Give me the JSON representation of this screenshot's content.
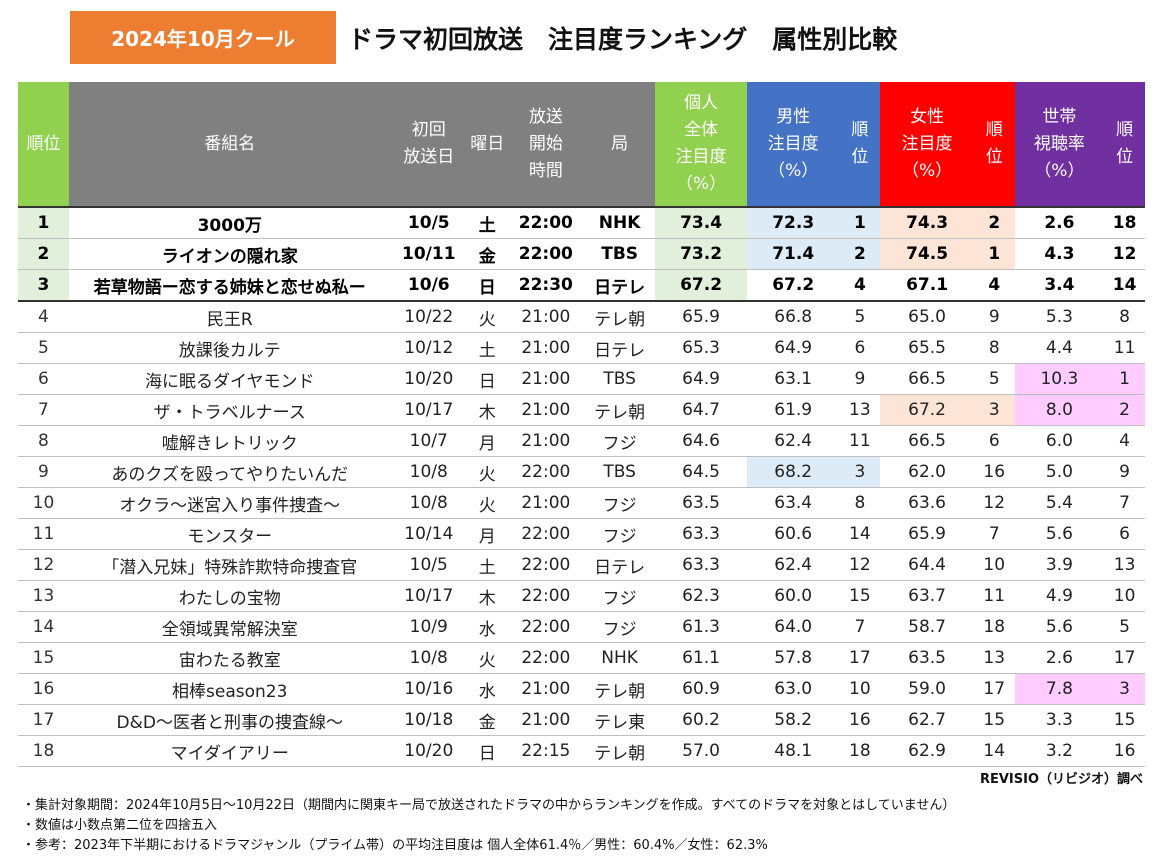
{
  "header": {
    "badge": "2024年10月クール",
    "title": "ドラマ初回放送　注目度ランキング　属性別比較"
  },
  "table": {
    "columns": {
      "rank": "順位",
      "name": "番組名",
      "date": "初回\n放送日",
      "day": "曜日",
      "time": "放送\n開始\n時間",
      "station": "局",
      "individual": "個人\n全体\n注目度\n（%）",
      "male": "男性\n注目度\n（%）",
      "male_rank": "順\n位",
      "female": "女性\n注目度\n（%）",
      "female_rank": "順\n位",
      "household": "世帯\n視聴率\n（%）",
      "household_rank": "順\n位"
    },
    "rows": [
      {
        "rank": "1",
        "name": "3000万",
        "date": "10/5",
        "day": "土",
        "time": "22:00",
        "station": "NHK",
        "individual": "73.4",
        "male": "72.3",
        "male_rank": "1",
        "female": "74.3",
        "female_rank": "2",
        "household": "2.6",
        "household_rank": "18"
      },
      {
        "rank": "2",
        "name": "ライオンの隠れ家",
        "date": "10/11",
        "day": "金",
        "time": "22:00",
        "station": "TBS",
        "individual": "73.2",
        "male": "71.4",
        "male_rank": "2",
        "female": "74.5",
        "female_rank": "1",
        "household": "4.3",
        "household_rank": "12"
      },
      {
        "rank": "3",
        "name": "若草物語ー恋する姉妹と恋せぬ私ー",
        "date": "10/6",
        "day": "日",
        "time": "22:30",
        "station": "日テレ",
        "individual": "67.2",
        "male": "67.2",
        "male_rank": "4",
        "female": "67.1",
        "female_rank": "4",
        "household": "3.4",
        "household_rank": "14"
      },
      {
        "rank": "4",
        "name": "民王R",
        "date": "10/22",
        "day": "火",
        "time": "21:00",
        "station": "テレ朝",
        "individual": "65.9",
        "male": "66.8",
        "male_rank": "5",
        "female": "65.0",
        "female_rank": "9",
        "household": "5.3",
        "household_rank": "8"
      },
      {
        "rank": "5",
        "name": "放課後カルテ",
        "date": "10/12",
        "day": "土",
        "time": "21:00",
        "station": "日テレ",
        "individual": "65.3",
        "male": "64.9",
        "male_rank": "6",
        "female": "65.5",
        "female_rank": "8",
        "household": "4.4",
        "household_rank": "11"
      },
      {
        "rank": "6",
        "name": "海に眠るダイヤモンド",
        "date": "10/20",
        "day": "日",
        "time": "21:00",
        "station": "TBS",
        "individual": "64.9",
        "male": "63.1",
        "male_rank": "9",
        "female": "66.5",
        "female_rank": "5",
        "household": "10.3",
        "household_rank": "1"
      },
      {
        "rank": "7",
        "name": "ザ・トラベルナース",
        "date": "10/17",
        "day": "木",
        "time": "21:00",
        "station": "テレ朝",
        "individual": "64.7",
        "male": "61.9",
        "male_rank": "13",
        "female": "67.2",
        "female_rank": "3",
        "household": "8.0",
        "household_rank": "2"
      },
      {
        "rank": "8",
        "name": "嘘解きレトリック",
        "date": "10/7",
        "day": "月",
        "time": "21:00",
        "station": "フジ",
        "individual": "64.6",
        "male": "62.4",
        "male_rank": "11",
        "female": "66.5",
        "female_rank": "6",
        "household": "6.0",
        "household_rank": "4"
      },
      {
        "rank": "9",
        "name": "あのクズを殴ってやりたいんだ",
        "date": "10/8",
        "day": "火",
        "time": "22:00",
        "station": "TBS",
        "individual": "64.5",
        "male": "68.2",
        "male_rank": "3",
        "female": "62.0",
        "female_rank": "16",
        "household": "5.0",
        "household_rank": "9"
      },
      {
        "rank": "10",
        "name": "オクラ～迷宮入り事件捜査～",
        "date": "10/8",
        "day": "火",
        "time": "21:00",
        "station": "フジ",
        "individual": "63.5",
        "male": "63.4",
        "male_rank": "8",
        "female": "63.6",
        "female_rank": "12",
        "household": "5.4",
        "household_rank": "7"
      },
      {
        "rank": "11",
        "name": "モンスター",
        "date": "10/14",
        "day": "月",
        "time": "22:00",
        "station": "フジ",
        "individual": "63.3",
        "male": "60.6",
        "male_rank": "14",
        "female": "65.9",
        "female_rank": "7",
        "household": "5.6",
        "household_rank": "6"
      },
      {
        "rank": "12",
        "name": "「潜入兄妹」特殊詐欺特命捜査官",
        "date": "10/5",
        "day": "土",
        "time": "22:00",
        "station": "日テレ",
        "individual": "63.3",
        "male": "62.4",
        "male_rank": "12",
        "female": "64.4",
        "female_rank": "10",
        "household": "3.9",
        "household_rank": "13"
      },
      {
        "rank": "13",
        "name": "わたしの宝物",
        "date": "10/17",
        "day": "木",
        "time": "22:00",
        "station": "フジ",
        "individual": "62.3",
        "male": "60.0",
        "male_rank": "15",
        "female": "63.7",
        "female_rank": "11",
        "household": "4.9",
        "household_rank": "10"
      },
      {
        "rank": "14",
        "name": "全領域異常解決室",
        "date": "10/9",
        "day": "水",
        "time": "22:00",
        "station": "フジ",
        "individual": "61.3",
        "male": "64.0",
        "male_rank": "7",
        "female": "58.7",
        "female_rank": "18",
        "household": "5.6",
        "household_rank": "5"
      },
      {
        "rank": "15",
        "name": "宙わたる教室",
        "date": "10/8",
        "day": "火",
        "time": "22:00",
        "station": "NHK",
        "individual": "61.1",
        "male": "57.8",
        "male_rank": "17",
        "female": "63.5",
        "female_rank": "13",
        "household": "2.6",
        "household_rank": "17"
      },
      {
        "rank": "16",
        "name": "相棒season23",
        "date": "10/16",
        "day": "水",
        "time": "21:00",
        "station": "テレ朝",
        "individual": "60.9",
        "male": "63.0",
        "male_rank": "10",
        "female": "59.0",
        "female_rank": "17",
        "household": "7.8",
        "household_rank": "3"
      },
      {
        "rank": "17",
        "name": "D&D～医者と刑事の捜査線～",
        "date": "10/18",
        "day": "金",
        "time": "21:00",
        "station": "テレ東",
        "individual": "60.2",
        "male": "58.2",
        "male_rank": "16",
        "female": "62.7",
        "female_rank": "15",
        "household": "3.3",
        "household_rank": "15"
      },
      {
        "rank": "18",
        "name": "マイダイアリー",
        "date": "10/20",
        "day": "日",
        "time": "22:15",
        "station": "テレ朝",
        "individual": "57.0",
        "male": "48.1",
        "male_rank": "18",
        "female": "62.9",
        "female_rank": "14",
        "household": "3.2",
        "household_rank": "16"
      }
    ]
  },
  "credit": "REVISIO（リビジオ）調べ",
  "notes": [
    "・集計対象期間：2024年10月5日～10月22日（期間内に関東キー局で放送されたドラマの中からランキングを作成。すべてのドラマを対象とはしていません）",
    "・数値は小数点第二位を四捨五入",
    "・参考：2023年下半期におけるドラマジャンル（プライム帯）の平均注目度は 個人全体61.4％／男性：60.4%／女性：62.3%"
  ],
  "colors": {
    "badge": "#ED7D31",
    "rank_header": "#92D050",
    "gray_header": "#808080",
    "individual_header": "#92D050",
    "male_header": "#4472C4",
    "female_header": "#FF0000",
    "household_header": "#7030A0",
    "male_highlight": "#DDEBF7",
    "female_highlight": "#FCE4D6",
    "household_highlight": "#FFCCFF"
  },
  "highlights": {
    "male_top3_rows": [
      0,
      1,
      8
    ],
    "female_top3_rows": [
      0,
      1,
      6
    ],
    "household_top3_rows": [
      5,
      6,
      15
    ]
  }
}
